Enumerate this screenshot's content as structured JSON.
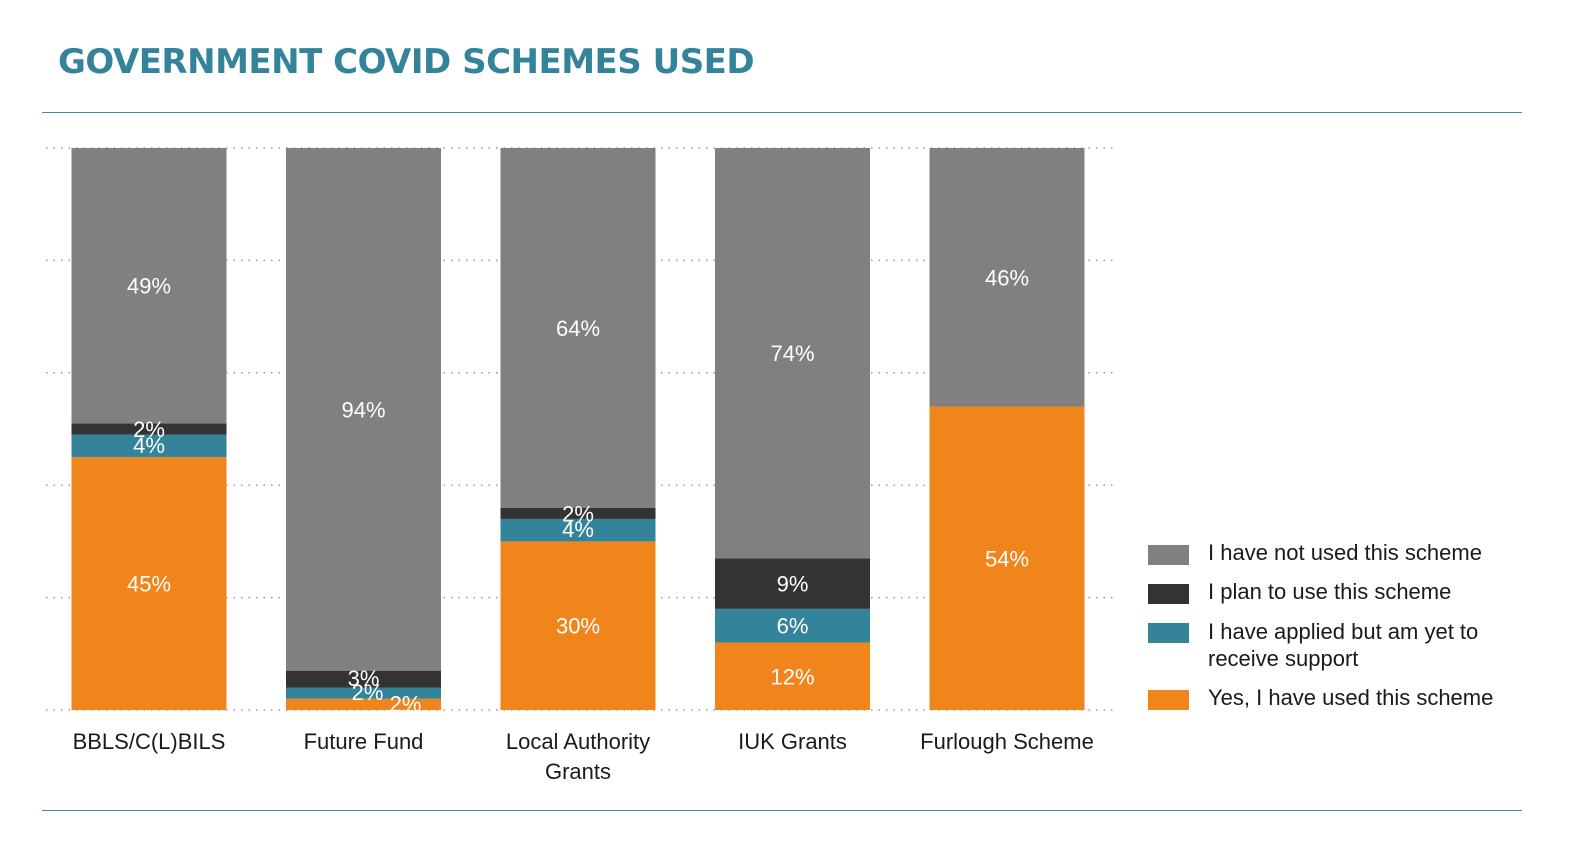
{
  "chart_data": {
    "type": "bar",
    "stacked": true,
    "title": "GOVERNMENT COVID SCHEMES USED",
    "categories": [
      "BBLS/C(L)BILS",
      "Future Fund",
      "Local Authority Grants",
      "IUK Grants",
      "Furlough Scheme"
    ],
    "series": [
      {
        "name": "Yes, I have used this scheme",
        "values": [
          45,
          2,
          30,
          12,
          54
        ],
        "labels": [
          "45%",
          "2%",
          "30%",
          "12%",
          "54%"
        ],
        "color": "#f0851c"
      },
      {
        "name": "I have applied but am yet to receive support",
        "values": [
          4,
          2,
          4,
          6,
          0
        ],
        "labels": [
          "4%",
          "2%",
          "4%",
          "6%",
          ""
        ],
        "color": "#33849a"
      },
      {
        "name": "I plan to use this scheme",
        "values": [
          2,
          3,
          2,
          9,
          0
        ],
        "labels": [
          "2%",
          "3%",
          "2%",
          "9%",
          ""
        ],
        "color": "#333333"
      },
      {
        "name": "I have not used this scheme",
        "values": [
          49,
          94,
          64,
          74,
          46
        ],
        "labels": [
          "49%",
          "94%",
          "64%",
          "74%",
          "46%"
        ],
        "color": "#808080"
      }
    ],
    "ylim": [
      0,
      100
    ],
    "grid": true,
    "legend": "right"
  }
}
